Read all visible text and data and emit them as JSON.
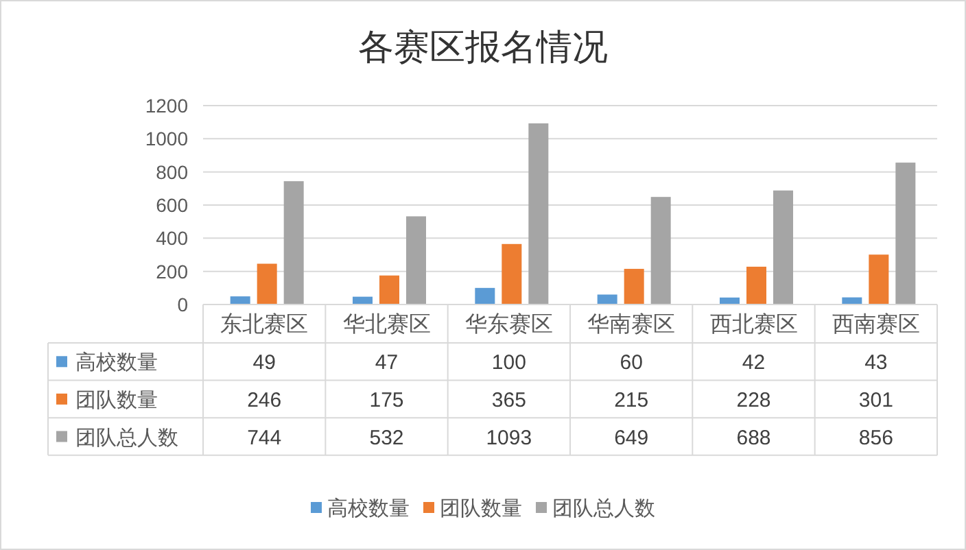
{
  "chart_data": {
    "type": "bar",
    "title": "各赛区报名情况",
    "categories": [
      "东北赛区",
      "华北赛区",
      "华东赛区",
      "华南赛区",
      "西北赛区",
      "西南赛区"
    ],
    "series": [
      {
        "name": "高校数量",
        "color": "#5b9bd5",
        "values": [
          49,
          47,
          100,
          60,
          42,
          43
        ]
      },
      {
        "name": "团队数量",
        "color": "#ed7d31",
        "values": [
          246,
          175,
          365,
          215,
          228,
          301
        ]
      },
      {
        "name": "团队总人数",
        "color": "#a5a5a5",
        "values": [
          744,
          532,
          1093,
          649,
          688,
          856
        ]
      }
    ],
    "ylim": [
      0,
      1200
    ],
    "yticks": [
      0,
      200,
      400,
      600,
      800,
      1000,
      1200
    ],
    "grid": "y",
    "legend": "bottom",
    "data_labels": true
  }
}
